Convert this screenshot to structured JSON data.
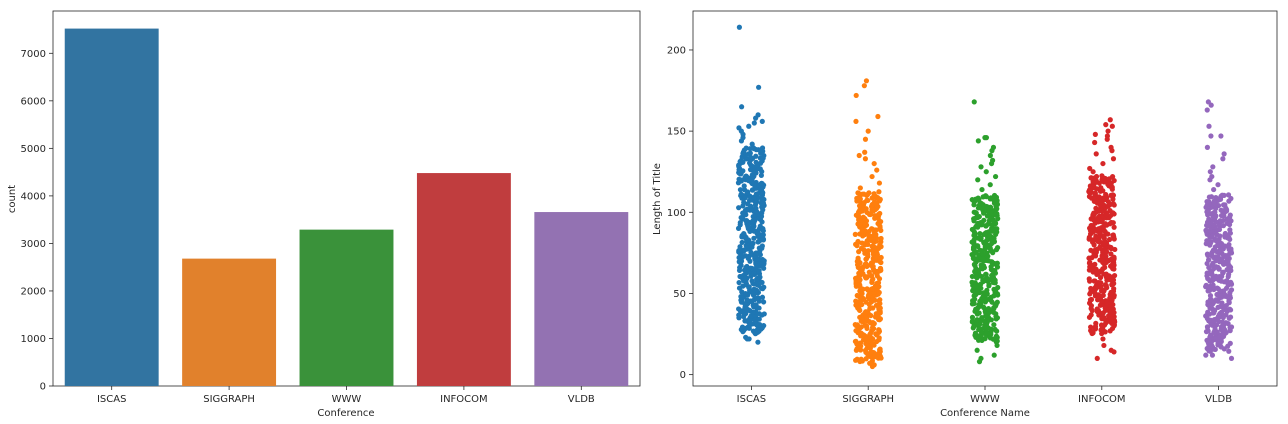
{
  "chart_data": [
    {
      "type": "bar",
      "xlabel": "Conference",
      "ylabel": "count",
      "categories": [
        "ISCAS",
        "SIGGRAPH",
        "WWW",
        "INFOCOM",
        "VLDB"
      ],
      "values": [
        7520,
        2680,
        3290,
        4480,
        3660
      ],
      "ylim": [
        0,
        7890
      ],
      "yticks": [
        0,
        1000,
        2000,
        3000,
        4000,
        5000,
        6000,
        7000
      ],
      "colors": [
        "#3274a1",
        "#e1812c",
        "#3a923a",
        "#c03d3e",
        "#9372b2"
      ],
      "grid": false,
      "legend": "none"
    },
    {
      "type": "scatter",
      "subtype": "strip",
      "xlabel": "Conference Name",
      "ylabel": "Length of Title",
      "categories": [
        "ISCAS",
        "SIGGRAPH",
        "WWW",
        "INFOCOM",
        "VLDB"
      ],
      "ylim": [
        -7,
        224
      ],
      "yticks": [
        0,
        50,
        100,
        150,
        200
      ],
      "colors": [
        "#1f77b4",
        "#ff7f0e",
        "#2ca02c",
        "#d62728",
        "#9467bd"
      ],
      "series": [
        {
          "category": "ISCAS",
          "dense_range": [
            25,
            140
          ],
          "points": [
            214,
            177,
            165,
            160,
            158,
            156,
            155,
            153,
            152,
            150,
            148,
            146,
            144,
            142,
            22,
            22,
            20,
            23
          ]
        },
        {
          "category": "SIGGRAPH",
          "dense_range": [
            8,
            112
          ],
          "points": [
            181,
            178,
            172,
            159,
            156,
            150,
            145,
            137,
            135,
            133,
            130,
            126,
            122,
            118,
            115,
            5,
            6,
            7
          ]
        },
        {
          "category": "WWW",
          "dense_range": [
            20,
            110
          ],
          "points": [
            168,
            146,
            146,
            144,
            140,
            138,
            135,
            132,
            130,
            128,
            125,
            122,
            120,
            117,
            114,
            18,
            15,
            12,
            10,
            8
          ]
        },
        {
          "category": "INFOCOM",
          "dense_range": [
            25,
            122
          ],
          "points": [
            157,
            154,
            153,
            150,
            148,
            147,
            145,
            143,
            140,
            138,
            136,
            133,
            130,
            127,
            125,
            22,
            18,
            15,
            14,
            10
          ]
        },
        {
          "category": "VLDB",
          "dense_range": [
            14,
            110
          ],
          "points": [
            168,
            166,
            163,
            153,
            147,
            147,
            140,
            136,
            133,
            128,
            125,
            122,
            120,
            117,
            114,
            12,
            12,
            10
          ]
        }
      ],
      "grid": false,
      "legend": "none"
    }
  ]
}
